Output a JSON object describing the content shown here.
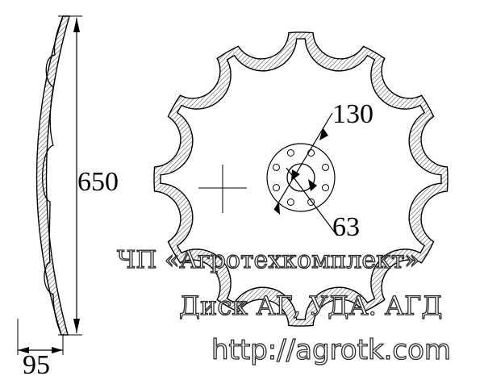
{
  "dimensions": {
    "diameter": "650",
    "width": "95",
    "bolt_circle": "130",
    "center_hole": "63"
  },
  "watermark": {
    "company": "ЧП «Агротехкомплект»",
    "product": "Диск АГ, УДА. АГД",
    "url": "http://agrotk.com"
  },
  "disc": {
    "notches": 12,
    "bolt_holes": 8
  },
  "colors": {
    "line": "#000000",
    "hatch": "#555555",
    "watermark_outline": "#2a2a2a"
  }
}
